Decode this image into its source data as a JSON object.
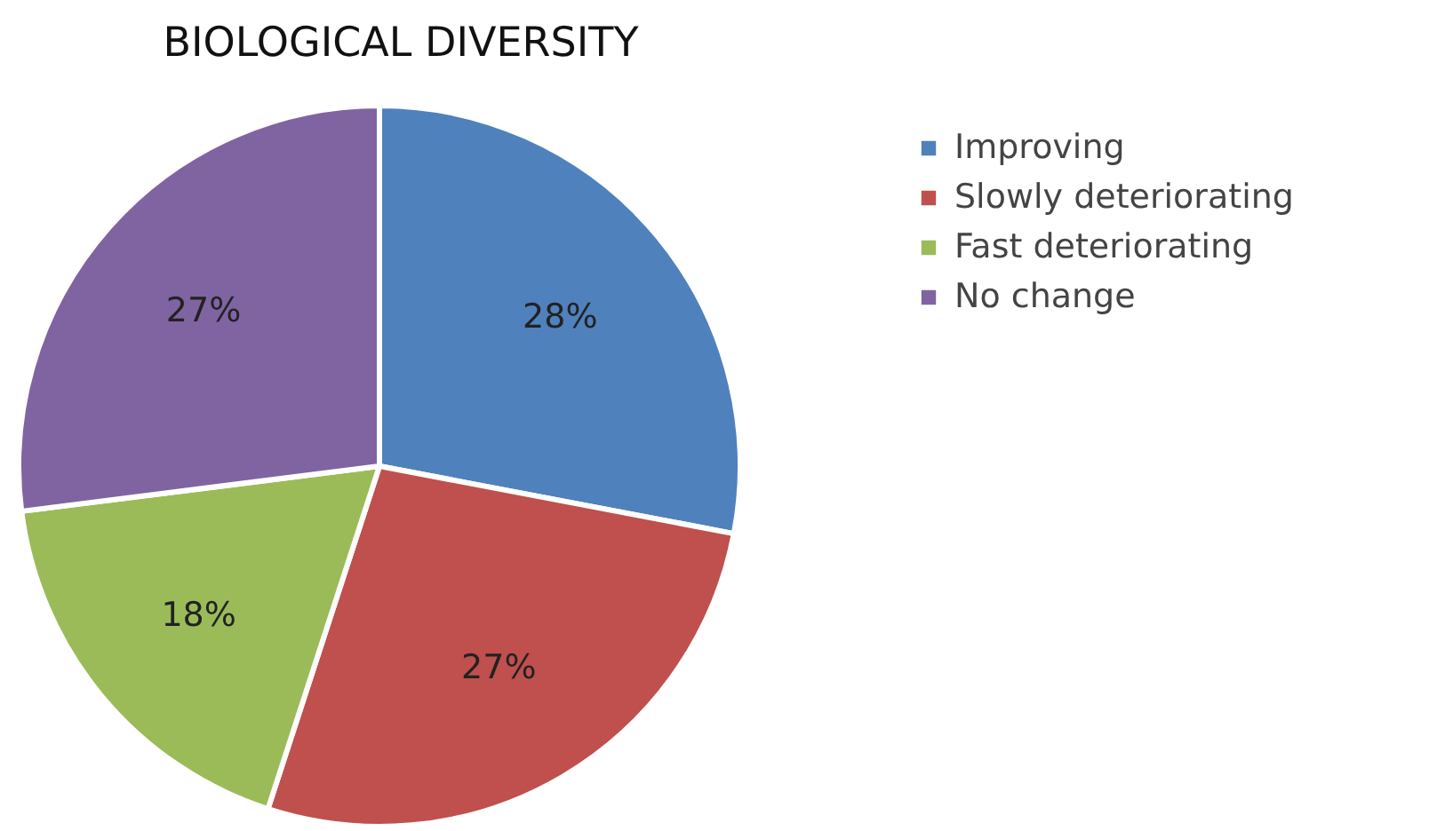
{
  "chart_data": {
    "type": "pie",
    "title": "BIOLOGICAL DIVERSITY",
    "categories": [
      "Improving",
      "Slowly deteriorating",
      "Fast deteriorating",
      "No change"
    ],
    "values": [
      28,
      27,
      18,
      27
    ],
    "colors": [
      "#4f81bd",
      "#c0504d",
      "#9bbb59",
      "#8064a2"
    ],
    "value_labels": [
      "28%",
      "27%",
      "18%",
      "27%"
    ],
    "legend": "right"
  }
}
